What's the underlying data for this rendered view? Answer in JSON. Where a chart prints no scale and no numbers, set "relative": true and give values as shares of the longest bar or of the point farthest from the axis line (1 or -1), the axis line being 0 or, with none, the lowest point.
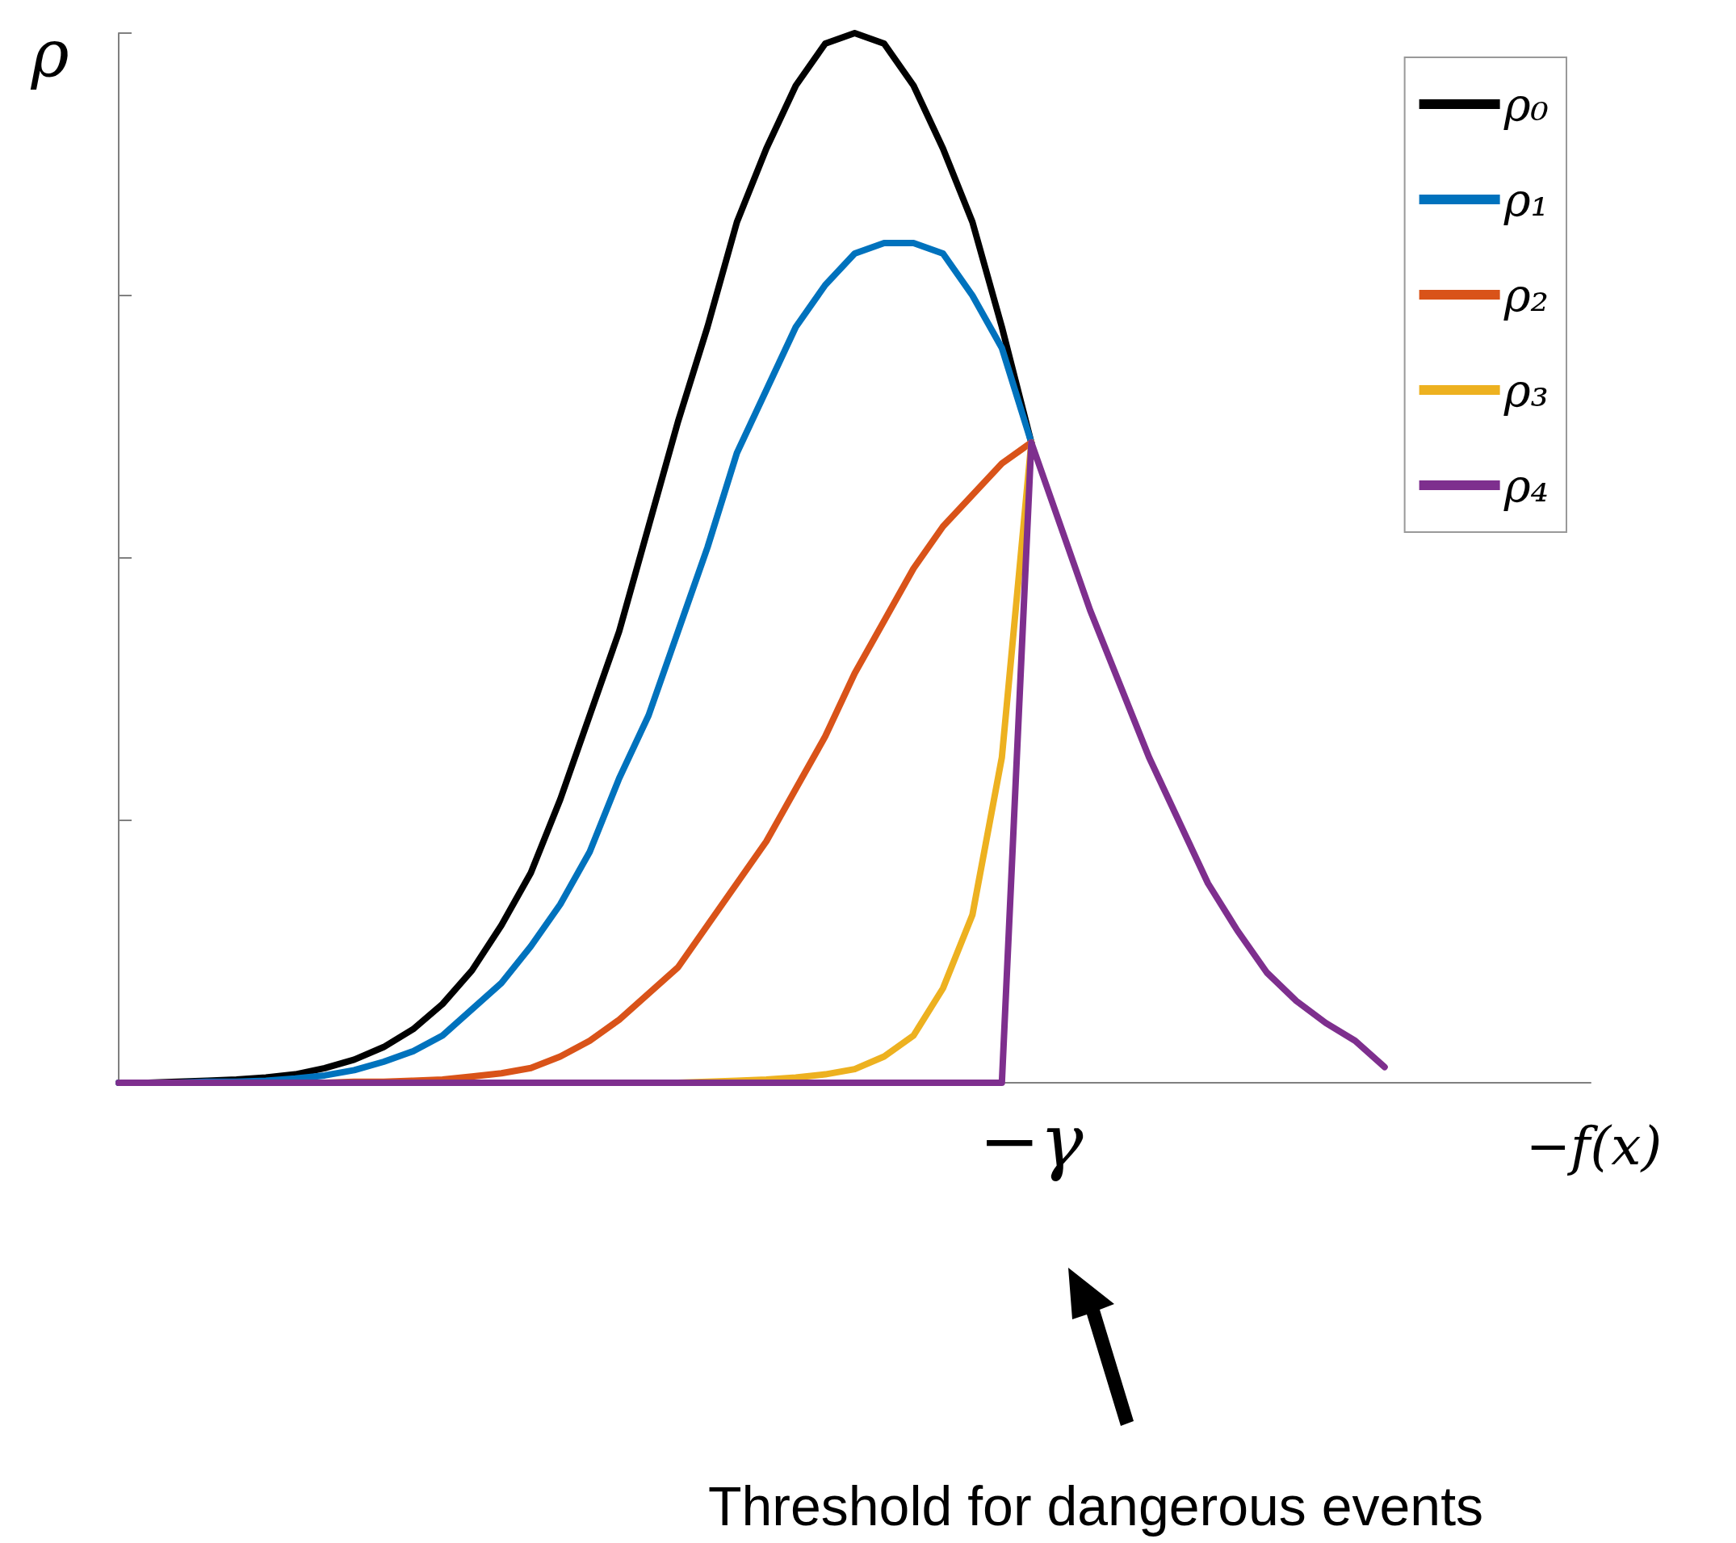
{
  "chart_data": {
    "type": "line",
    "relative": true,
    "ylabel": "ρ",
    "xlabel": "−f(x)",
    "categories": [
      null,
      null,
      null,
      null,
      null,
      null,
      null,
      null,
      null,
      null,
      null,
      null,
      null,
      null,
      null,
      null,
      null,
      null,
      null,
      null,
      null,
      null,
      null,
      null,
      null,
      null,
      null,
      null,
      null,
      null,
      null,
      null,
      null,
      null,
      null,
      null,
      null,
      null,
      null,
      null,
      null,
      null,
      null,
      null,
      null,
      null,
      null,
      null,
      null,
      null,
      null
    ],
    "legend": "top right",
    "grid": false,
    "marker": "none",
    "line_style": "solid",
    "annotations": [
      "−γ",
      "Threshold for dangerous events"
    ],
    "series": [
      {
        "name": "ρ₀",
        "color": "#000000",
        "values": [
          0,
          0,
          0.001,
          0.002,
          0.003,
          0.005,
          0.008,
          0.014,
          0.022,
          0.034,
          0.051,
          0.075,
          0.107,
          0.15,
          0.2,
          0.27,
          0.35,
          0.43,
          0.53,
          0.63,
          0.72,
          0.82,
          0.89,
          0.95,
          0.99,
          1,
          0.99,
          0.95,
          0.89,
          0.82,
          0.72,
          0.61,
          null,
          null,
          null,
          null,
          null,
          null,
          null,
          null,
          null,
          null,
          null,
          null,
          null,
          null,
          null,
          null,
          null,
          null,
          null
        ]
      },
      {
        "name": "ρ₁",
        "color": "#0072bd",
        "values": [
          0,
          0,
          0,
          0.001,
          0.001,
          0.002,
          0.004,
          0.007,
          0.012,
          0.02,
          0.03,
          0.045,
          0.07,
          0.095,
          0.13,
          0.17,
          0.22,
          0.29,
          0.35,
          0.43,
          0.51,
          0.6,
          0.66,
          0.72,
          0.76,
          0.79,
          0.8,
          0.8,
          0.79,
          0.75,
          0.7,
          0.61,
          null,
          null,
          null,
          null,
          null,
          null,
          null,
          null,
          null,
          null,
          null,
          null,
          null,
          null,
          null,
          null,
          null,
          null,
          null
        ]
      },
      {
        "name": "ρ₂",
        "color": "#d95319",
        "values": [
          null,
          null,
          null,
          null,
          null,
          null,
          0,
          0,
          0.001,
          0.001,
          0.002,
          0.003,
          0.006,
          0.009,
          0.014,
          0.025,
          0.04,
          0.06,
          0.085,
          0.11,
          0.15,
          0.19,
          0.23,
          0.28,
          0.33,
          0.39,
          0.44,
          0.49,
          0.53,
          0.56,
          0.59,
          0.61,
          null,
          null,
          null,
          null,
          null,
          null,
          null,
          null,
          null,
          null,
          null,
          null,
          null,
          null,
          null,
          null,
          null,
          null,
          null
        ]
      },
      {
        "name": "ρ₃",
        "color": "#edb120",
        "values": [
          null,
          null,
          null,
          null,
          null,
          null,
          null,
          null,
          null,
          null,
          null,
          null,
          null,
          null,
          null,
          null,
          null,
          null,
          null,
          0,
          0.001,
          0.002,
          0.003,
          0.005,
          0.008,
          0.013,
          0.025,
          0.045,
          0.09,
          0.16,
          0.31,
          0.61,
          null,
          null,
          null,
          null,
          null,
          null,
          null,
          null,
          null,
          null,
          null,
          null,
          null,
          null,
          null,
          null,
          null,
          null,
          null
        ]
      },
      {
        "name": "ρ₄",
        "color": "#7e2f8e",
        "values": [
          0,
          0,
          0,
          0,
          0,
          0,
          0,
          0,
          0,
          0,
          0,
          0,
          0,
          0,
          0,
          0,
          0,
          0,
          0,
          0,
          0,
          0,
          0,
          0,
          0,
          0,
          0,
          0,
          0,
          0,
          0,
          0.61,
          0.53,
          0.45,
          0.38,
          0.31,
          0.25,
          0.19,
          0.145,
          0.105,
          0.078,
          0.057,
          0.04,
          0.015,
          null,
          null,
          null,
          null,
          null,
          null,
          null
        ]
      }
    ]
  }
}
